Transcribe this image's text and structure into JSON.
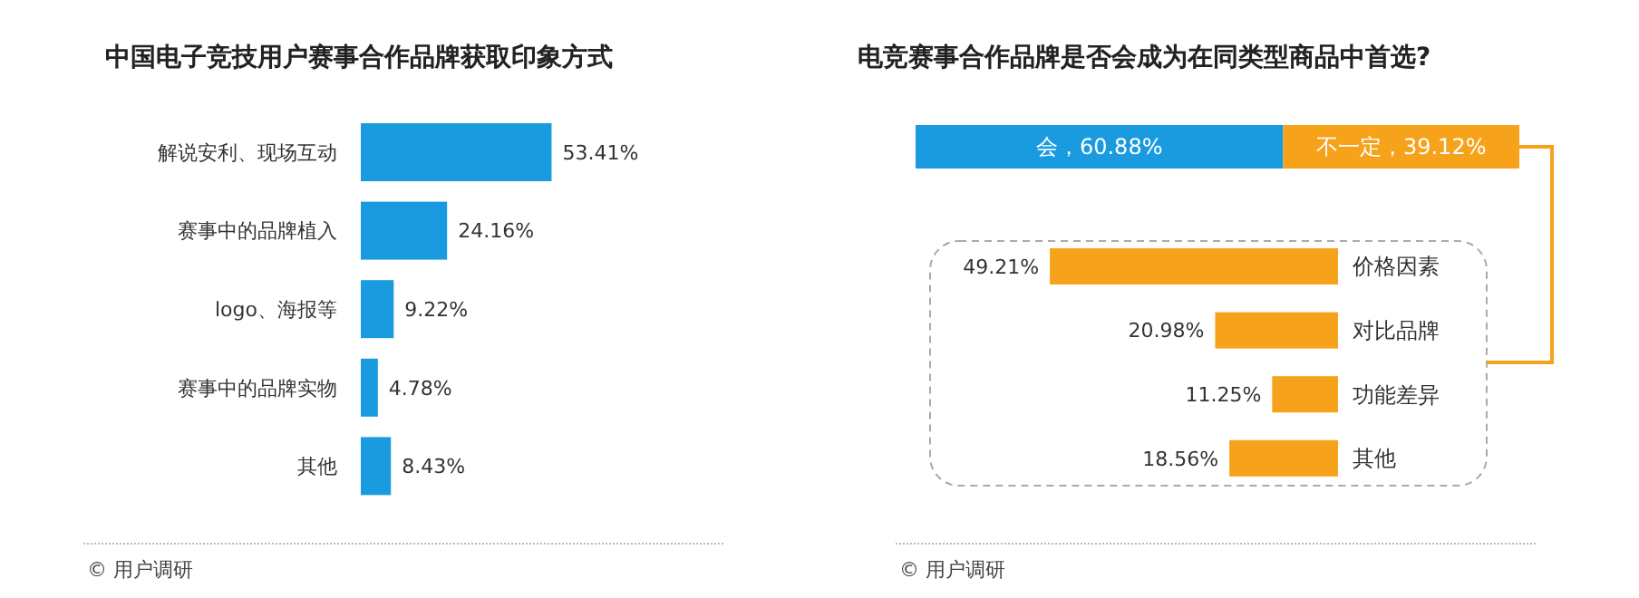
{
  "chart_data": [
    {
      "type": "bar",
      "orientation": "horizontal",
      "title": "中国电子竞技用户赛事合作品牌获取印象方式",
      "categories": [
        "解说安利、现场互动",
        "赛事中的品牌植入",
        "logo、海报等",
        "赛事中的品牌实物",
        "其他"
      ],
      "series": [
        {
          "color": "#1a9be0",
          "values": [
            53.41,
            24.16,
            9.22,
            4.78,
            8.43
          ],
          "value_labels": [
            "53.41%",
            "24.16%",
            "9.22%",
            "4.78%",
            "8.43%"
          ]
        }
      ],
      "annotations": [
        "© 用户调研"
      ]
    },
    {
      "type": "bar",
      "orientation": "horizontal",
      "stacked": true,
      "title": "电竞赛事合作品牌是否会成为在同类型商品中首选?",
      "categories": [
        null
      ],
      "series": [
        {
          "color": "#1a9be0",
          "values": [
            60.88
          ],
          "value_labels": [
            "会，60.88%"
          ]
        },
        {
          "color": "#f7a21b",
          "values": [
            39.12
          ],
          "value_labels": [
            "不一定，39.12%"
          ]
        }
      ]
    },
    {
      "type": "bar",
      "orientation": "horizontal",
      "categories": [
        "价格因素",
        "对比品牌",
        "功能差异",
        "其他"
      ],
      "series": [
        {
          "color": "#f7a21b",
          "values": [
            49.21,
            20.98,
            11.25,
            18.56
          ],
          "value_labels": [
            "49.21%",
            "20.98%",
            "11.25%",
            "18.56%"
          ]
        }
      ],
      "annotations": [
        "© 用户调研"
      ]
    }
  ]
}
